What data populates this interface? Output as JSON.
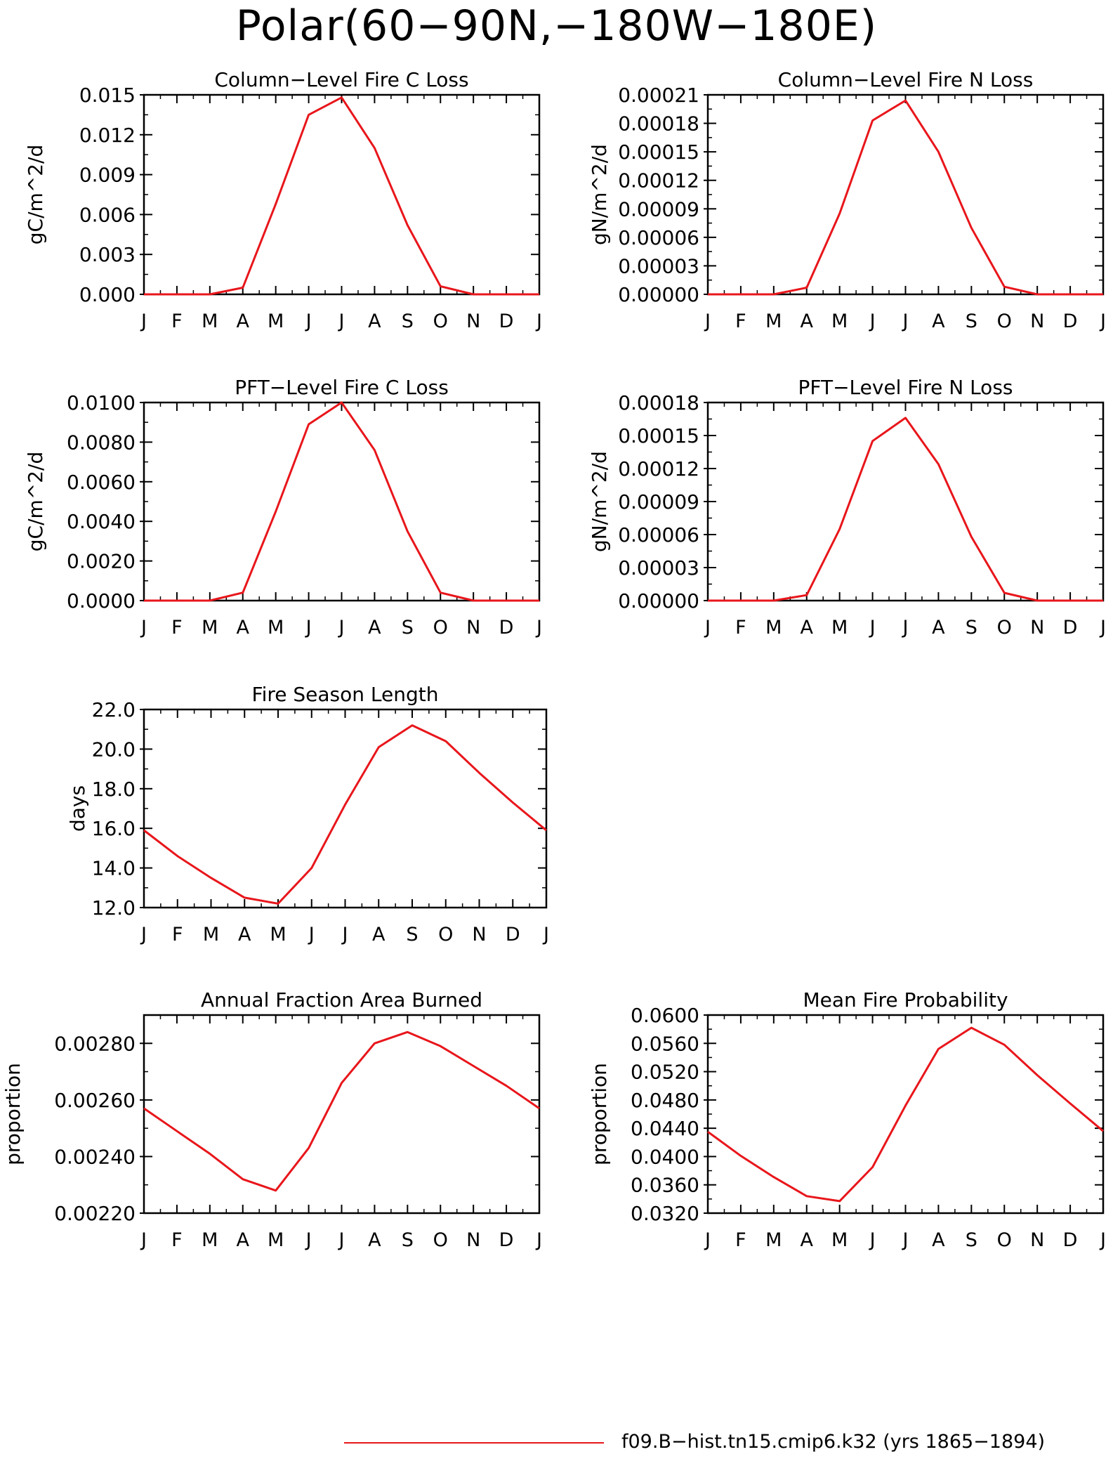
{
  "page_title": "Polar(60−90N,−180W−180E)",
  "line_color": "#e8161b",
  "legend": {
    "label": "f09.B−hist.tn15.cmip6.k32 (yrs 1865−1894)"
  },
  "chart_data": [
    {
      "type": "line",
      "title": "Column−Level Fire C Loss",
      "ylabel": "gC/m^2/d",
      "categories": [
        "J",
        "F",
        "M",
        "A",
        "M",
        "J",
        "J",
        "A",
        "S",
        "O",
        "N",
        "D",
        "J"
      ],
      "ylim": [
        0,
        0.015
      ],
      "yticks": [
        "0.000",
        "0.003",
        "0.006",
        "0.009",
        "0.012",
        "0.015"
      ],
      "series": [
        {
          "values": [
            0,
            0,
            0,
            0.0005,
            0.0068,
            0.0135,
            0.0148,
            0.011,
            0.0052,
            0.0006,
            0,
            0,
            0
          ]
        }
      ]
    },
    {
      "type": "line",
      "title": "Column−Level Fire N Loss",
      "ylabel": "gN/m^2/d",
      "categories": [
        "J",
        "F",
        "M",
        "A",
        "M",
        "J",
        "J",
        "A",
        "S",
        "O",
        "N",
        "D",
        "J"
      ],
      "ylim": [
        0,
        0.00021
      ],
      "yticks": [
        "0.00000",
        "0.00003",
        "0.00006",
        "0.00009",
        "0.00012",
        "0.00015",
        "0.00018",
        "0.00021"
      ],
      "series": [
        {
          "values": [
            0,
            0,
            0,
            7e-06,
            8.5e-05,
            0.000183,
            0.000204,
            0.00015,
            7e-05,
            8e-06,
            0,
            0,
            0
          ]
        }
      ]
    },
    {
      "type": "line",
      "title": "PFT−Level Fire C Loss",
      "ylabel": "gC/m^2/d",
      "categories": [
        "J",
        "F",
        "M",
        "A",
        "M",
        "J",
        "J",
        "A",
        "S",
        "O",
        "N",
        "D",
        "J"
      ],
      "ylim": [
        0,
        0.01
      ],
      "yticks": [
        "0.0000",
        "0.0020",
        "0.0040",
        "0.0060",
        "0.0080",
        "0.0100"
      ],
      "series": [
        {
          "values": [
            0,
            0,
            0,
            0.0004,
            0.0045,
            0.0089,
            0.01,
            0.0076,
            0.0035,
            0.0004,
            0,
            0,
            0
          ]
        }
      ]
    },
    {
      "type": "line",
      "title": "PFT−Level Fire N Loss",
      "ylabel": "gN/m^2/d",
      "categories": [
        "J",
        "F",
        "M",
        "A",
        "M",
        "J",
        "J",
        "A",
        "S",
        "O",
        "N",
        "D",
        "J"
      ],
      "ylim": [
        0,
        0.00018
      ],
      "yticks": [
        "0.00000",
        "0.00003",
        "0.00006",
        "0.00009",
        "0.00012",
        "0.00015",
        "0.00018"
      ],
      "series": [
        {
          "values": [
            0,
            0,
            0,
            5e-06,
            6.5e-05,
            0.000145,
            0.000166,
            0.000124,
            5.8e-05,
            7e-06,
            0,
            0,
            0
          ]
        }
      ]
    },
    {
      "type": "line",
      "title": "Fire Season Length",
      "ylabel": "days",
      "categories": [
        "J",
        "F",
        "M",
        "A",
        "M",
        "J",
        "J",
        "A",
        "S",
        "O",
        "N",
        "D",
        "J"
      ],
      "ylim": [
        12,
        22
      ],
      "yticks": [
        "12.0",
        "14.0",
        "16.0",
        "18.0",
        "20.0",
        "22.0"
      ],
      "series": [
        {
          "values": [
            15.9,
            14.6,
            13.5,
            12.5,
            12.2,
            14.0,
            17.2,
            20.1,
            21.2,
            20.4,
            18.8,
            17.3,
            15.9
          ]
        }
      ]
    },
    {
      "type": "line",
      "title": "Annual Fraction Area Burned",
      "ylabel": "proportion",
      "categories": [
        "J",
        "F",
        "M",
        "A",
        "M",
        "J",
        "J",
        "A",
        "S",
        "O",
        "N",
        "D",
        "J"
      ],
      "ylim": [
        0.0022,
        0.0029
      ],
      "yticks": [
        "0.00220",
        "0.00240",
        "0.00260",
        "0.00280"
      ],
      "series": [
        {
          "values": [
            0.00257,
            0.00249,
            0.00241,
            0.00232,
            0.00228,
            0.00243,
            0.00266,
            0.0028,
            0.00284,
            0.00279,
            0.00272,
            0.00265,
            0.00257
          ]
        }
      ]
    },
    {
      "type": "line",
      "title": "Mean Fire Probability",
      "ylabel": "proportion",
      "categories": [
        "J",
        "F",
        "M",
        "A",
        "M",
        "J",
        "J",
        "A",
        "S",
        "O",
        "N",
        "D",
        "J"
      ],
      "ylim": [
        0.032,
        0.06
      ],
      "yticks": [
        "0.0320",
        "0.0360",
        "0.0400",
        "0.0440",
        "0.0480",
        "0.0520",
        "0.0560",
        "0.0600"
      ],
      "series": [
        {
          "values": [
            0.0435,
            0.0401,
            0.0371,
            0.0344,
            0.0337,
            0.0385,
            0.0472,
            0.0552,
            0.0582,
            0.0558,
            0.0515,
            0.0475,
            0.0436
          ]
        }
      ]
    }
  ]
}
